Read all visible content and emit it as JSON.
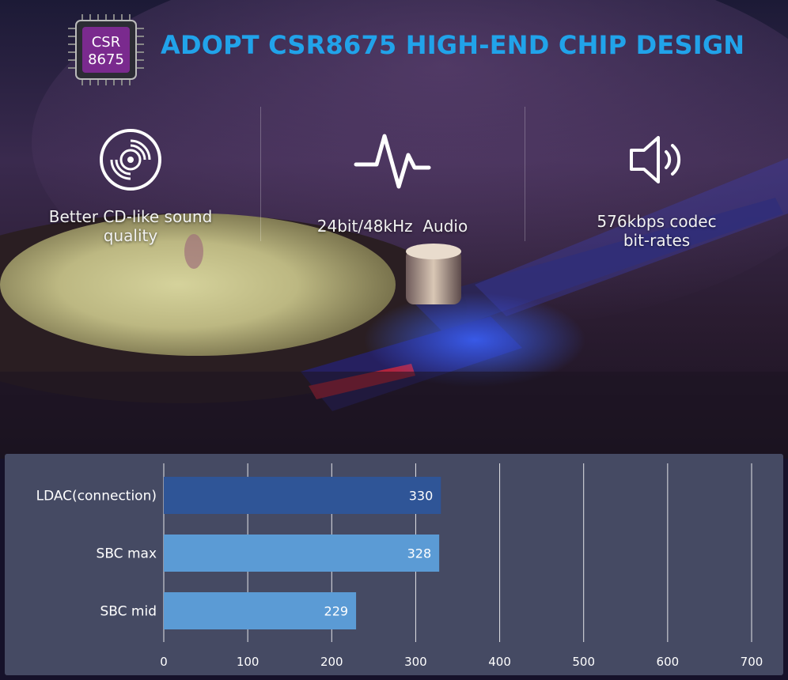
{
  "header": {
    "title": "ADOPT CSR8675 HIGH-END CHIP DESIGN",
    "chip_line1": "CSR",
    "chip_line2": "8675"
  },
  "features": [
    {
      "icon": "cd-icon",
      "label_line1": "Better CD-like sound",
      "label_line2": "quality"
    },
    {
      "icon": "audio-wave-icon",
      "label_line1": "24bit/48kHz  Audio",
      "label_line2": ""
    },
    {
      "icon": "speaker-icon",
      "label_line1": "576kbps codec",
      "label_line2": "bit-rates"
    }
  ],
  "colors": {
    "title": "#21a3ea",
    "bar_dark": "#2f5597",
    "bar_light": "#5b9bd5",
    "panel": "#454a63"
  },
  "chart_data": {
    "type": "bar",
    "orientation": "horizontal",
    "categories": [
      "LDAC(connection)",
      "SBC max",
      "SBC mid"
    ],
    "values": [
      330,
      328,
      229
    ],
    "bar_colors": [
      "#2f5597",
      "#5b9bd5",
      "#5b9bd5"
    ],
    "xlim": [
      0,
      700
    ],
    "xticks": [
      0,
      100,
      200,
      300,
      400,
      500,
      600,
      700
    ],
    "grid": true,
    "title": "",
    "xlabel": "",
    "ylabel": ""
  }
}
